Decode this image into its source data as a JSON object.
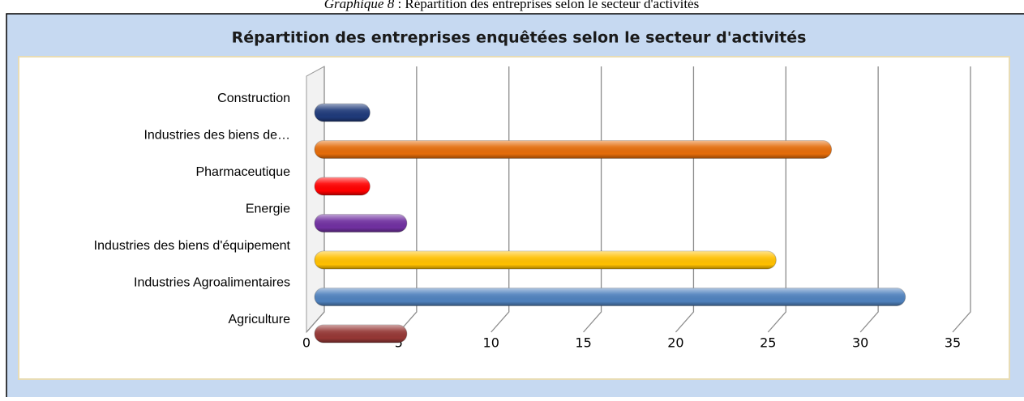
{
  "caption": {
    "label": "Graphique 8",
    "text": " : Répartition des entreprises selon le secteur d'activités"
  },
  "chart_data": {
    "type": "bar",
    "orientation": "horizontal",
    "title": "Répartition des entreprises enquêtées selon le secteur d'activités",
    "categories": [
      "Construction",
      "Industries des biens de…",
      "Pharmaceutique",
      "Energie",
      "Industries des biens d'équipement",
      "Industries Agroalimentaires",
      "Agriculture"
    ],
    "values": [
      3,
      28,
      3,
      5,
      25,
      32,
      5
    ],
    "colors": [
      "#1f3a7a",
      "#e46c0a",
      "#ff0000",
      "#7030a0",
      "#ffc000",
      "#4f81bd",
      "#953735"
    ],
    "xlim": [
      0,
      35
    ],
    "xticks": [
      0,
      5,
      10,
      15,
      20,
      25,
      30,
      35
    ],
    "grid": true
  }
}
